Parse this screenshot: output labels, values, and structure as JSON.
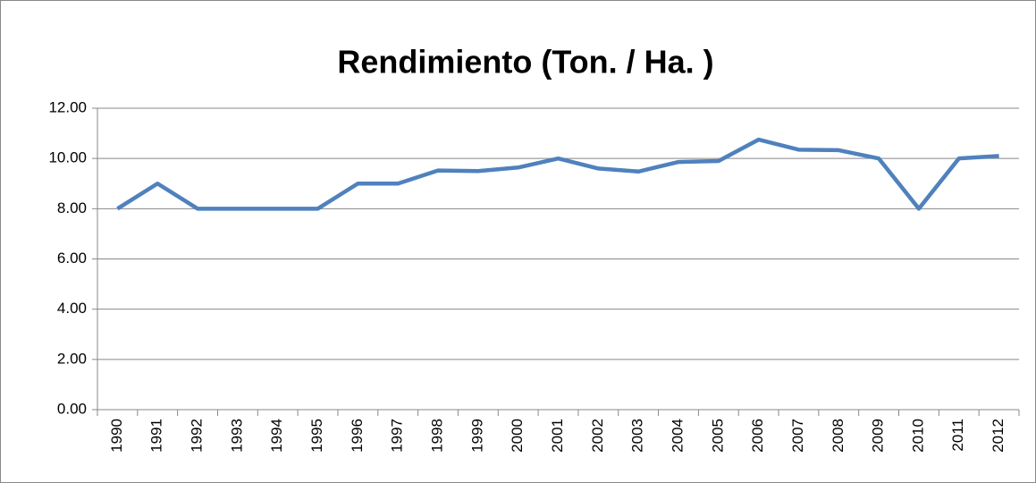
{
  "chart_data": {
    "type": "line",
    "title": "Rendimiento (Ton. / Ha. )",
    "categories": [
      "1990",
      "1991",
      "1992",
      "1993",
      "1994",
      "1995",
      "1996",
      "1997",
      "1998",
      "1999",
      "2000",
      "2001",
      "2002",
      "2003",
      "2004",
      "2005",
      "2006",
      "2007",
      "2008",
      "2009",
      "2010",
      "2011",
      "2012"
    ],
    "series": [
      {
        "name": "Rendimiento",
        "color": "#4f81bd",
        "values": [
          8.0,
          9.0,
          8.0,
          8.0,
          8.0,
          8.0,
          9.0,
          9.0,
          9.52,
          9.5,
          9.64,
          10.0,
          9.6,
          9.48,
          9.86,
          9.9,
          10.75,
          10.35,
          10.33,
          10.0,
          8.0,
          10.0,
          10.1
        ]
      }
    ],
    "ylim": [
      0,
      12
    ],
    "yticks": [
      {
        "value": 0,
        "label": "0.00"
      },
      {
        "value": 2,
        "label": "2.00"
      },
      {
        "value": 4,
        "label": "4.00"
      },
      {
        "value": 6,
        "label": "6.00"
      },
      {
        "value": 8,
        "label": "8.00"
      },
      {
        "value": 10,
        "label": "10.00"
      },
      {
        "value": 12,
        "label": "12.00"
      }
    ],
    "grid": true
  }
}
